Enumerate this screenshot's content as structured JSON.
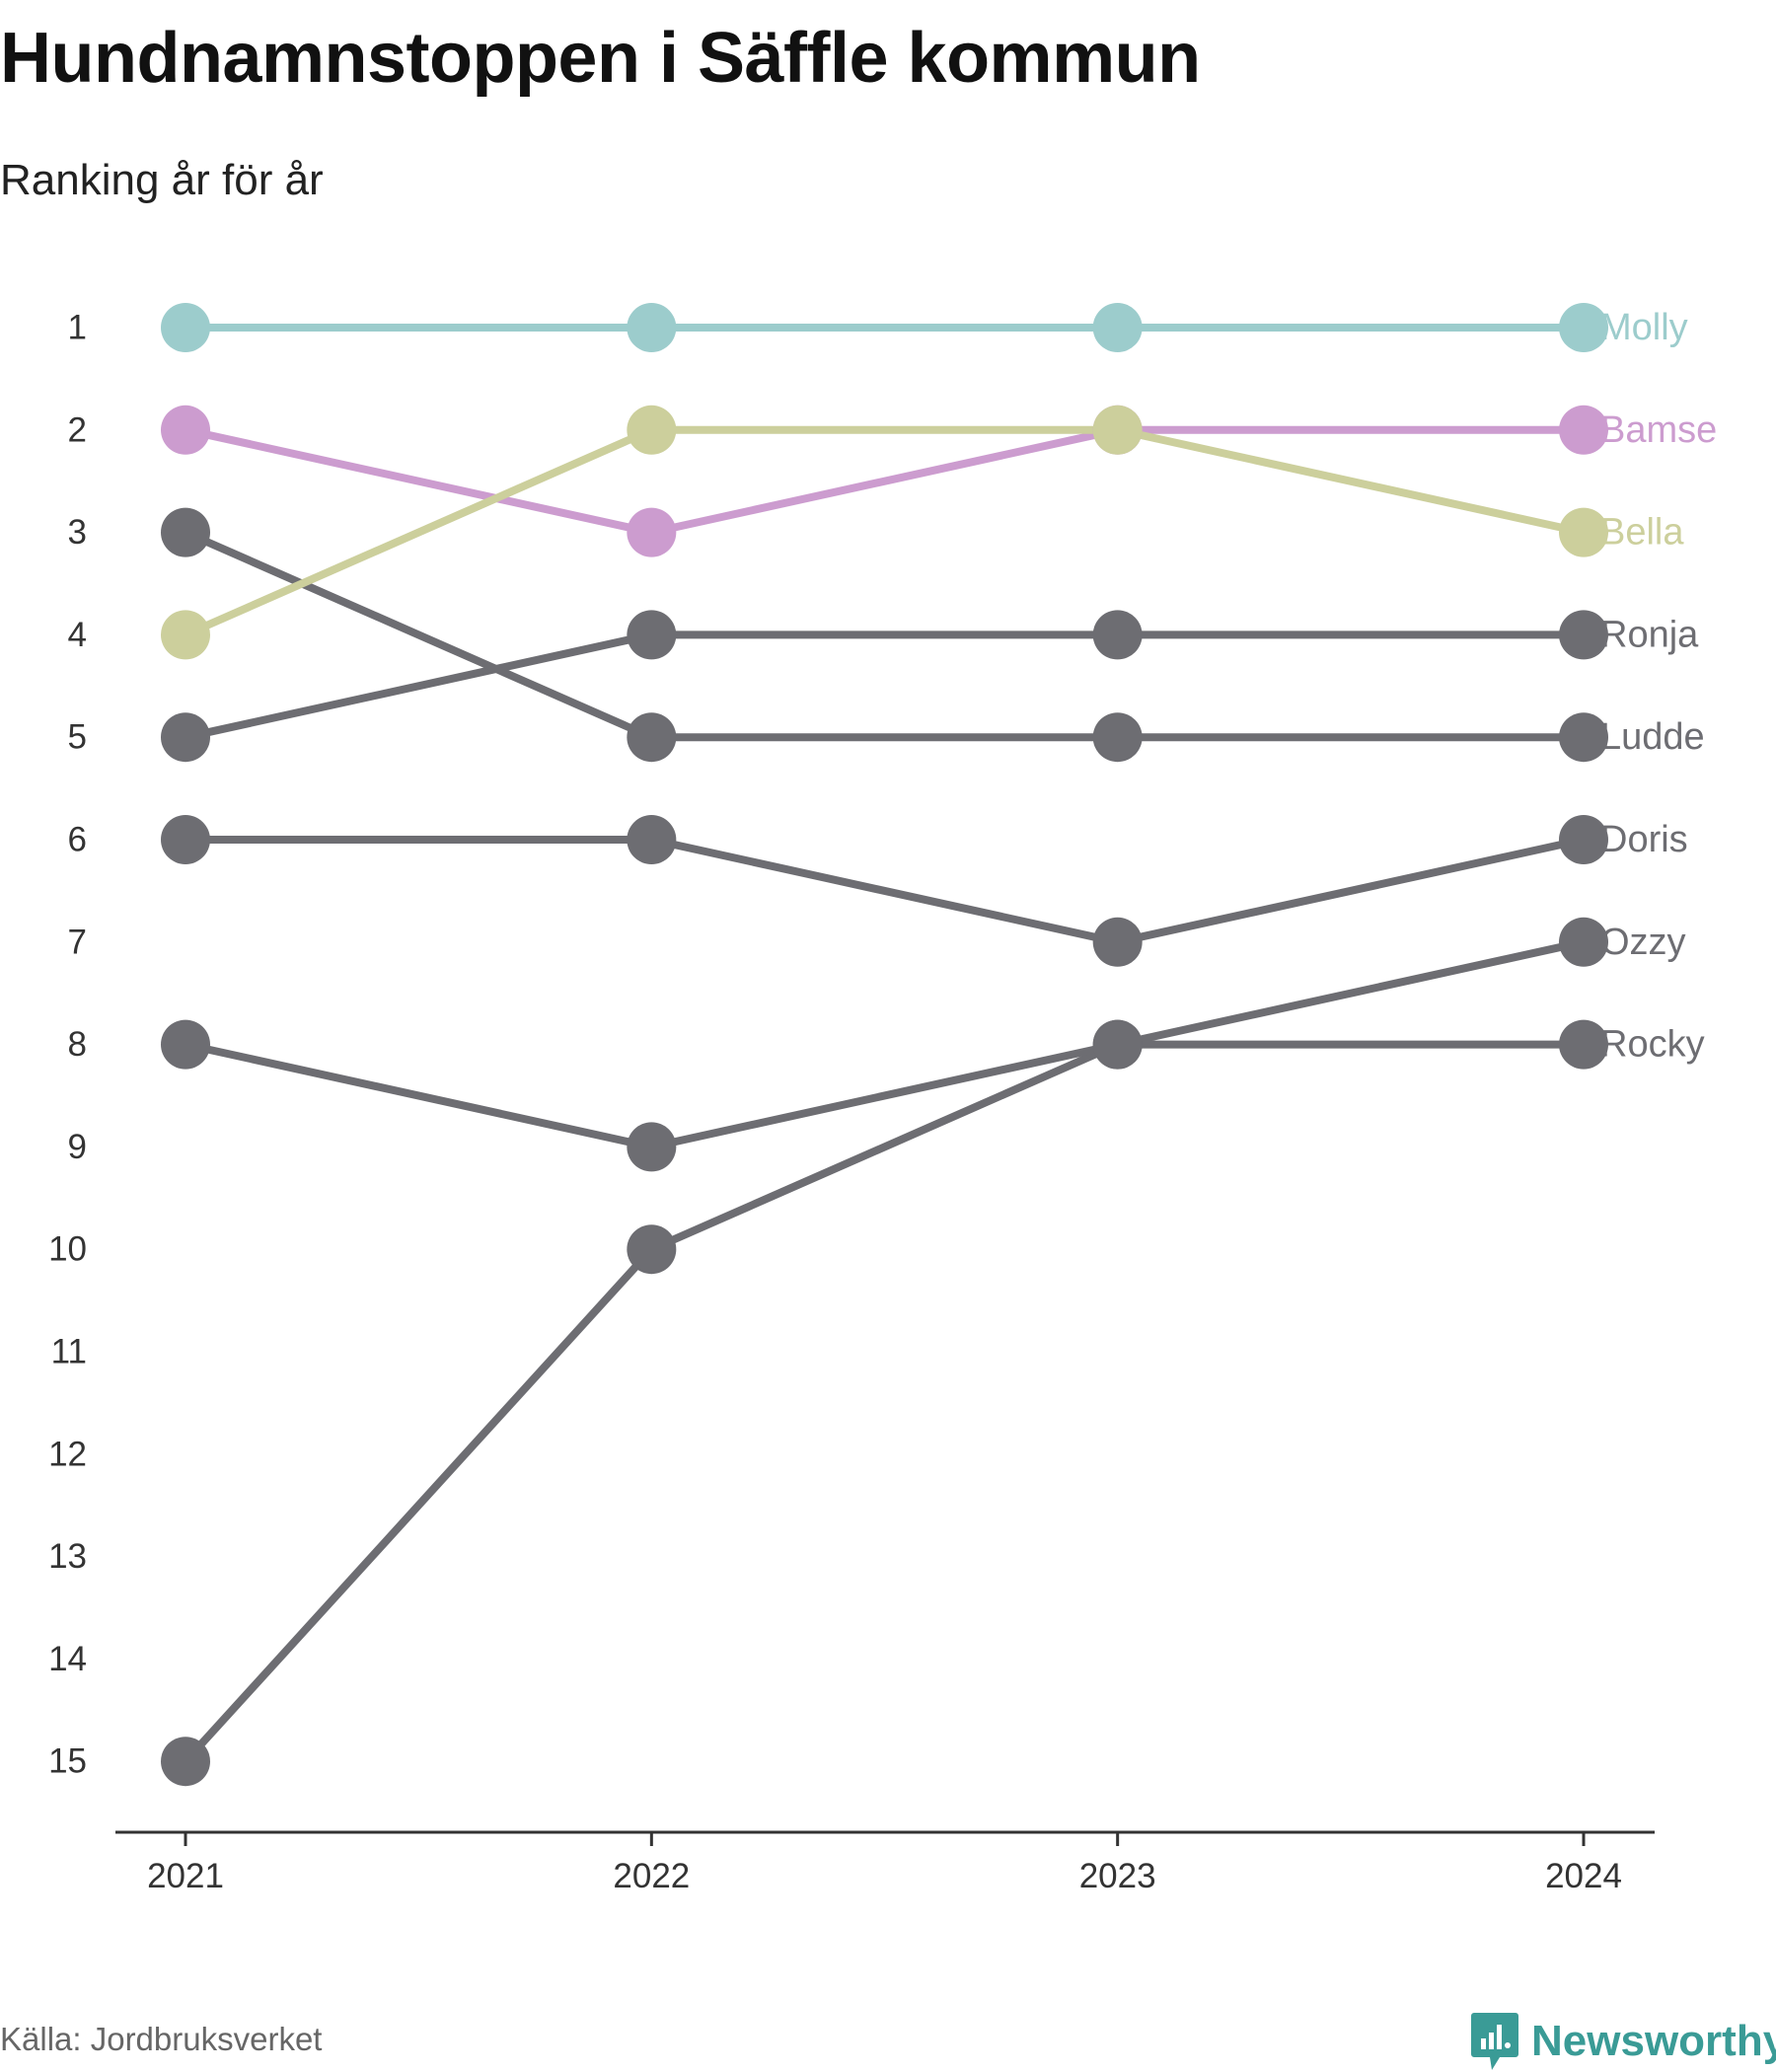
{
  "title": "Hundnamnstoppen i Säffle kommun",
  "subtitle": "Ranking år för år",
  "source": "Källa: Jordbruksverket",
  "brand": {
    "name": "Newsworthy",
    "icon": "chart-bubble-icon",
    "color": "#3a9b96"
  },
  "chart_data": {
    "type": "line",
    "x": [
      "2021",
      "2022",
      "2023",
      "2024"
    ],
    "y_ticks": [
      "1",
      "2",
      "3",
      "4",
      "5",
      "6",
      "7",
      "8",
      "9",
      "10",
      "11",
      "12",
      "13",
      "14",
      "15"
    ],
    "ylim": [
      1,
      15
    ],
    "y_inverted": true,
    "grid": false,
    "legend": "end-labels",
    "series": [
      {
        "name": "Molly",
        "values": [
          1,
          1,
          1,
          1
        ],
        "color": "#9ccccc",
        "labeled": true
      },
      {
        "name": "Bamse",
        "values": [
          2,
          3,
          2,
          2
        ],
        "color": "#cc9ccf",
        "labeled": true
      },
      {
        "name": "Bella",
        "values": [
          4,
          2,
          2,
          3
        ],
        "color": "#cccf9c",
        "labeled": true
      },
      {
        "name": "Ronja",
        "values": [
          5,
          4,
          4,
          4
        ],
        "color": "#6d6d72",
        "labeled": true
      },
      {
        "name": "Ludde",
        "values": [
          3,
          5,
          5,
          5
        ],
        "color": "#6d6d72",
        "labeled": true
      },
      {
        "name": "Doris",
        "values": [
          6,
          6,
          7,
          6
        ],
        "color": "#6d6d72",
        "labeled": true
      },
      {
        "name": "Ozzy",
        "values": [
          15,
          10,
          8,
          7
        ],
        "color": "#6d6d72",
        "labeled": true
      },
      {
        "name": "Rocky",
        "values": [
          8,
          9,
          8,
          8
        ],
        "color": "#6d6d72",
        "labeled": true
      }
    ]
  }
}
